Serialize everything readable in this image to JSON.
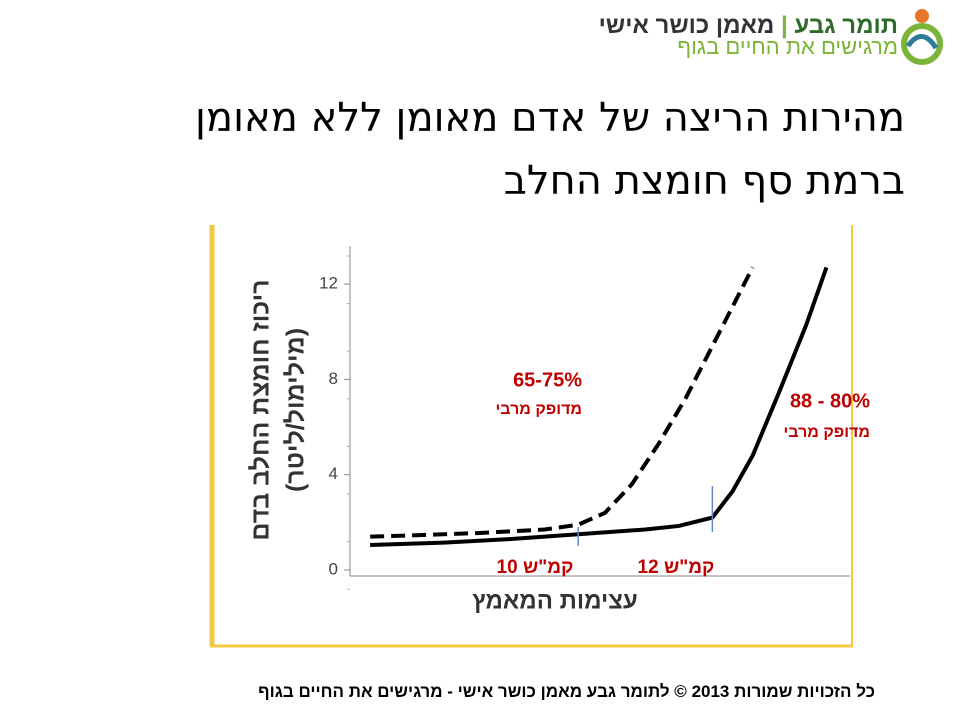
{
  "logo": {
    "name": "תומר גבע",
    "role": "מאמן כושר אישי",
    "tagline": "מרגישים את החיים בגוף"
  },
  "title": [
    "מהירות הריצה של אדם מאומן ללא מאומן",
    "ברמת סף חומצת החלב"
  ],
  "chart_data": {
    "type": "line",
    "ylabel": [
      "ריכוז חומצת החלב בדם",
      "(מילימול/ליטר)"
    ],
    "xlabel": "עצימות המאמץ",
    "xlim": [
      6.6,
      14.2
    ],
    "ylim": [
      0,
      13.6
    ],
    "yticks": [
      0,
      4,
      8,
      12
    ],
    "series": [
      {
        "color": "#000000",
        "dash": true,
        "x": [
          6.9,
          7.5,
          8.5,
          9.5,
          10.0,
          10.4,
          10.8,
          11.2,
          11.6,
          12.0,
          12.6
        ],
        "values": [
          1.4,
          1.45,
          1.55,
          1.7,
          1.9,
          2.4,
          3.6,
          5.3,
          7.2,
          9.4,
          12.7
        ]
      },
      {
        "color": "#000000",
        "dash": false,
        "x": [
          6.9,
          8,
          9,
          10,
          11,
          11.5,
          12,
          12.3,
          12.6,
          13,
          13.4,
          13.7
        ],
        "values": [
          1.05,
          1.15,
          1.3,
          1.5,
          1.7,
          1.85,
          2.2,
          3.3,
          4.8,
          7.5,
          10.3,
          12.7
        ]
      }
    ],
    "vlines": [
      10,
      12
    ],
    "annotations": [
      "65-75%",
      "מדופק מרבי",
      "88 - 80%",
      "מדופק מרבי",
      "10 קמ\"ש",
      "12 קמ\"ש"
    ]
  },
  "footer": "כל הזכויות שמורות 2013 © לתומר גבע מאמן כושר אישי - מרגישים את החיים בגוף"
}
